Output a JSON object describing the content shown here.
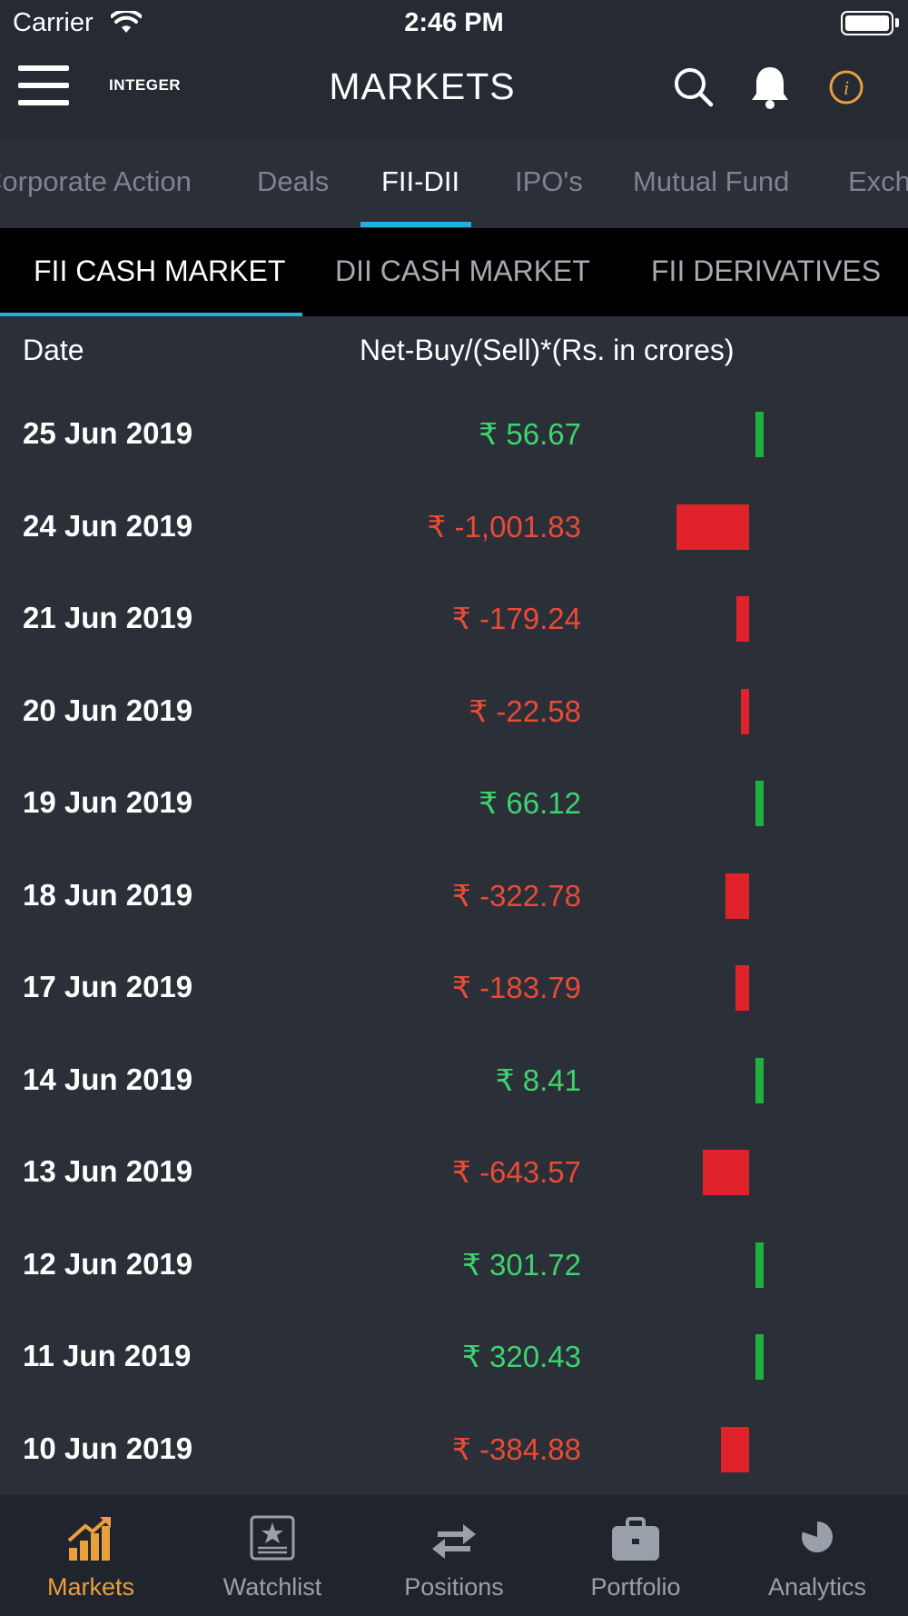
{
  "status_bar": {
    "carrier": "Carrier",
    "time": "2:46 PM"
  },
  "header": {
    "logo_text": "INTEGER",
    "title": "MARKETS"
  },
  "top_tabs": [
    {
      "label": "Corporate Action",
      "active": false
    },
    {
      "label": "Deals",
      "active": false
    },
    {
      "label": "FII-DII",
      "active": true
    },
    {
      "label": "IPO's",
      "active": false
    },
    {
      "label": "Mutual Fund",
      "active": false
    },
    {
      "label": "Exchange",
      "active": false
    }
  ],
  "sub_tabs": [
    {
      "label": "FII CASH MARKET",
      "active": true
    },
    {
      "label": "DII CASH MARKET",
      "active": false
    },
    {
      "label": "FII DERIVATIVES",
      "active": false
    }
  ],
  "table": {
    "col_date": "Date",
    "col_net": "Net-Buy/(Sell)*(Rs. in crores)",
    "rows": [
      {
        "date": "25 Jun 2019",
        "value_text": "₹ 56.67",
        "value": 56.67
      },
      {
        "date": "24 Jun 2019",
        "value_text": "₹ -1,001.83",
        "value": -1001.83
      },
      {
        "date": "21 Jun 2019",
        "value_text": "₹ -179.24",
        "value": -179.24
      },
      {
        "date": "20 Jun 2019",
        "value_text": "₹ -22.58",
        "value": -22.58
      },
      {
        "date": "19 Jun 2019",
        "value_text": "₹ 66.12",
        "value": 66.12
      },
      {
        "date": "18 Jun 2019",
        "value_text": "₹ -322.78",
        "value": -322.78
      },
      {
        "date": "17 Jun 2019",
        "value_text": "₹ -183.79",
        "value": -183.79
      },
      {
        "date": "14 Jun 2019",
        "value_text": "₹ 8.41",
        "value": 8.41
      },
      {
        "date": "13 Jun 2019",
        "value_text": "₹ -643.57",
        "value": -643.57
      },
      {
        "date": "12 Jun 2019",
        "value_text": "₹ 301.72",
        "value": 301.72
      },
      {
        "date": "11 Jun 2019",
        "value_text": "₹ 320.43",
        "value": 320.43
      },
      {
        "date": "10 Jun 2019",
        "value_text": "₹ -384.88",
        "value": -384.88
      }
    ]
  },
  "bottom_nav": [
    {
      "label": "Markets",
      "icon": "bar-chart-icon",
      "active": true
    },
    {
      "label": "Watchlist",
      "icon": "star-icon",
      "active": false
    },
    {
      "label": "Positions",
      "icon": "swap-arrows-icon",
      "active": false
    },
    {
      "label": "Portfolio",
      "icon": "briefcase-icon",
      "active": false
    },
    {
      "label": "Analytics",
      "icon": "pie-chart-icon",
      "active": false
    }
  ],
  "colors": {
    "accent_blue": "#1fb0e8",
    "positive": "#3fd36f",
    "negative": "#ea4a36",
    "active_nav": "#e99f3c"
  }
}
